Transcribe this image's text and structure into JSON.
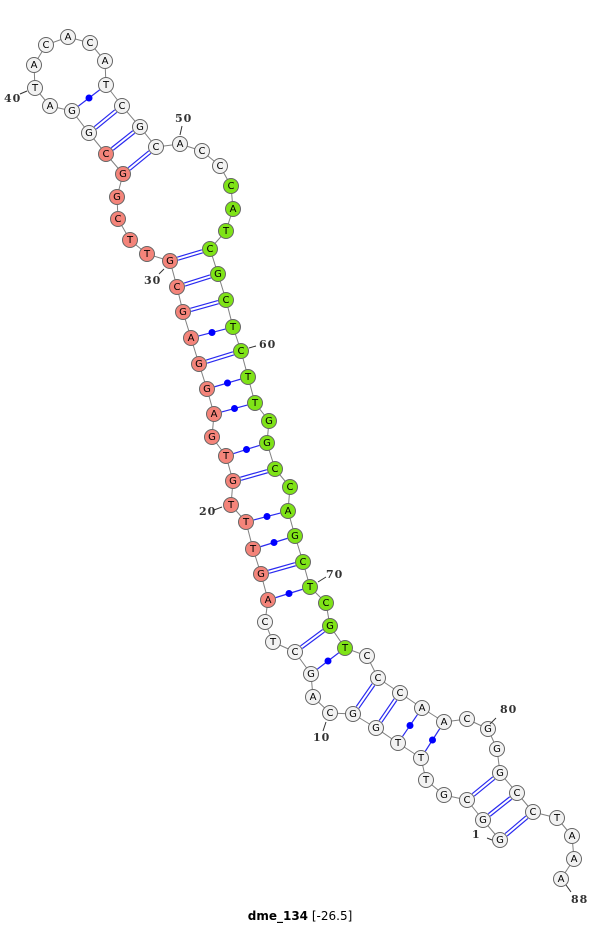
{
  "title": {
    "name": "dme_134",
    "energy": "[-26.5]"
  },
  "structure": {
    "sequence": [
      "G",
      "G",
      "C",
      "G",
      "T",
      "T",
      "T",
      "G",
      "G",
      "C",
      "A",
      "G",
      "C",
      "T",
      "C",
      "A",
      "G",
      "T",
      "T",
      "T",
      "G",
      "T",
      "G",
      "A",
      "G",
      "G",
      "A",
      "G",
      "C",
      "G",
      "T",
      "T",
      "C",
      "G",
      "G",
      "C",
      "G",
      "G",
      "A",
      "T",
      "A",
      "C",
      "A",
      "C",
      "A",
      "T",
      "C",
      "G",
      "C",
      "A",
      "C",
      "C",
      "C",
      "A",
      "T",
      "C",
      "G",
      "C",
      "T",
      "C",
      "T",
      "T",
      "G",
      "G",
      "C",
      "C",
      "A",
      "G",
      "C",
      "T",
      "C",
      "G",
      "T",
      "C",
      "C",
      "C",
      "A",
      "A",
      "C",
      "G",
      "G",
      "G",
      "C",
      "C",
      "T",
      "A",
      "A",
      "A"
    ],
    "pairs": [
      [
        1,
        84
      ],
      [
        2,
        83
      ],
      [
        3,
        82
      ],
      [
        6,
        78
      ],
      [
        7,
        77
      ],
      [
        8,
        76
      ],
      [
        9,
        75
      ],
      [
        12,
        73
      ],
      [
        13,
        72
      ],
      [
        16,
        70
      ],
      [
        17,
        69
      ],
      [
        18,
        68
      ],
      [
        19,
        67
      ],
      [
        21,
        65
      ],
      [
        22,
        64
      ],
      [
        24,
        62
      ],
      [
        25,
        61
      ],
      [
        26,
        60
      ],
      [
        27,
        59
      ],
      [
        28,
        58
      ],
      [
        29,
        57
      ],
      [
        30,
        56
      ],
      [
        35,
        49
      ],
      [
        36,
        48
      ],
      [
        37,
        47
      ],
      [
        38,
        46
      ]
    ],
    "highlights": [
      {
        "start": 16,
        "end": 36,
        "color": "#f4847a"
      },
      {
        "start": 53,
        "end": 73,
        "color": "#7fe317"
      }
    ],
    "default_color": "#f2f2f2",
    "pair_color": "#2a2af0",
    "backbone_color": "#808080",
    "number_labels": [
      "1",
      "10",
      "20",
      "30",
      "40",
      "50",
      "60",
      "70",
      "80",
      "88"
    ]
  }
}
